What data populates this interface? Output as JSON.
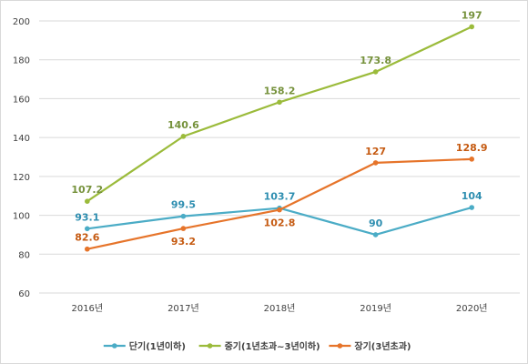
{
  "chart_data": {
    "type": "line",
    "title": "",
    "xlabel": "",
    "ylabel": "",
    "categories": [
      "2016년",
      "2017년",
      "2018년",
      "2019년",
      "2020년"
    ],
    "ylim": [
      60,
      200
    ],
    "yticks": [
      60,
      80,
      100,
      120,
      140,
      160,
      180,
      200
    ],
    "grid": "horizontal",
    "legend_position": "bottom",
    "series": [
      {
        "name": "단기(1년이하)",
        "color": "#4BACC6",
        "label_color": "#2E8EB0",
        "values": [
          93.1,
          99.5,
          103.7,
          90,
          104
        ],
        "labels": [
          "93.1",
          "99.5",
          "103.7",
          "90",
          "104"
        ],
        "label_pos": [
          "above",
          "above",
          "above",
          "above",
          "above"
        ]
      },
      {
        "name": "중기(1년초과~3년이하)",
        "color": "#9BBB3B",
        "label_color": "#76923C",
        "values": [
          107.2,
          140.6,
          158.2,
          173.8,
          197
        ],
        "labels": [
          "107.2",
          "140.6",
          "158.2",
          "173.8",
          "197"
        ],
        "label_pos": [
          "above",
          "above",
          "above",
          "above",
          "above"
        ]
      },
      {
        "name": "장기(3년초과)",
        "color": "#E6742A",
        "label_color": "#C55A11",
        "values": [
          82.6,
          93.2,
          102.8,
          127,
          128.9
        ],
        "labels": [
          "82.6",
          "93.2",
          "102.8",
          "127",
          "128.9"
        ],
        "label_pos": [
          "above",
          "below",
          "below",
          "above",
          "above"
        ]
      }
    ]
  }
}
